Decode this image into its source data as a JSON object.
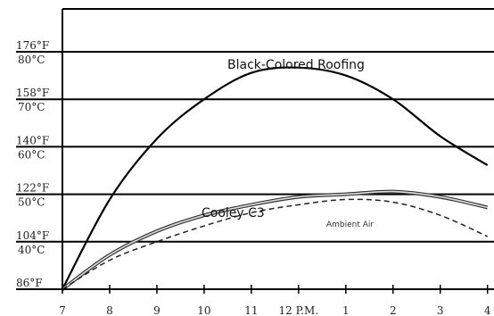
{
  "chart_data": {
    "type": "line",
    "x_tick_labels": [
      "7",
      "8",
      "9",
      "10",
      "11",
      "12 P.M.",
      "1",
      "2",
      "3",
      "4"
    ],
    "x_hours": [
      7,
      8,
      9,
      10,
      11,
      12,
      13,
      14,
      15,
      16
    ],
    "xlim": [
      7,
      16.1
    ],
    "ylim": [
      86,
      190
    ],
    "y_gridlines_f": [
      86,
      104,
      122,
      140,
      158,
      176
    ],
    "y_tick_labels": [
      {
        "f": 176,
        "fahrenheit": "176°F",
        "celsius": "80°C"
      },
      {
        "f": 158,
        "fahrenheit": "158°F",
        "celsius": "70°C"
      },
      {
        "f": 140,
        "fahrenheit": "140°F",
        "celsius": "60°C"
      },
      {
        "f": 122,
        "fahrenheit": "122°F",
        "celsius": "50°C"
      },
      {
        "f": 104,
        "fahrenheit": "104°F",
        "celsius": "40°C"
      },
      {
        "f": 86,
        "fahrenheit": "86°F",
        "celsius": ""
      }
    ],
    "grid": true,
    "series": [
      {
        "name": "Black-Colored Roofing",
        "style": "solid",
        "x": [
          7,
          8,
          9,
          10,
          11,
          12,
          13,
          14,
          15,
          16
        ],
        "y": [
          86,
          120,
          143,
          158,
          168,
          170,
          167,
          158,
          144,
          133
        ]
      },
      {
        "name": "Cooley C3",
        "style": "double",
        "x": [
          7,
          8,
          9,
          10,
          11,
          12,
          13,
          14,
          15,
          16
        ],
        "y": [
          86,
          99,
          108,
          114,
          118,
          121,
          122,
          123,
          121,
          117
        ]
      },
      {
        "name": "Ambient Air",
        "style": "dashed",
        "x": [
          7,
          8,
          9,
          10,
          11,
          12,
          13,
          14,
          15,
          16
        ],
        "y": [
          86,
          97,
          104,
          110,
          115,
          118,
          120,
          119,
          114,
          106
        ]
      }
    ],
    "annotations": [
      "Black-Colored Roofing",
      "Cooley C3",
      "Ambient Air"
    ]
  }
}
